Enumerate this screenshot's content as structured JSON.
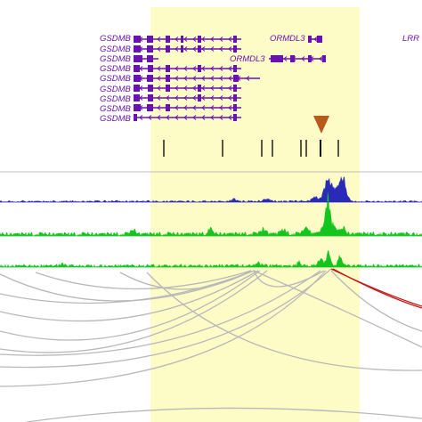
{
  "browser": {
    "colors": {
      "highlight": "#fdfbc6",
      "gene": "#6a12b0",
      "snp_marker": "#b75a1c",
      "track1": "#2a2ab8",
      "track2": "#15c51f",
      "track3": "#15c51f",
      "loop_gray": "#b8b8b8",
      "loop_red": "#c41a1a",
      "snp_tick": "#111111",
      "divider": "#aaaaaa"
    },
    "genes": [
      {
        "label": "GSDMB"
      },
      {
        "label": "GSDMB"
      },
      {
        "label": "GSDMB"
      },
      {
        "label": "GSDMB"
      },
      {
        "label": "GSDMB"
      },
      {
        "label": "GSDMB"
      },
      {
        "label": "GSDMB"
      },
      {
        "label": "GSDMB"
      },
      {
        "label": "GSDMB"
      }
    ],
    "ormdl3_labels": [
      "ORMDL3",
      "ORMDL3"
    ],
    "lrr_label": "LRR",
    "snp_count": 8,
    "selected_snp_icon": "down-triangle-icon"
  }
}
